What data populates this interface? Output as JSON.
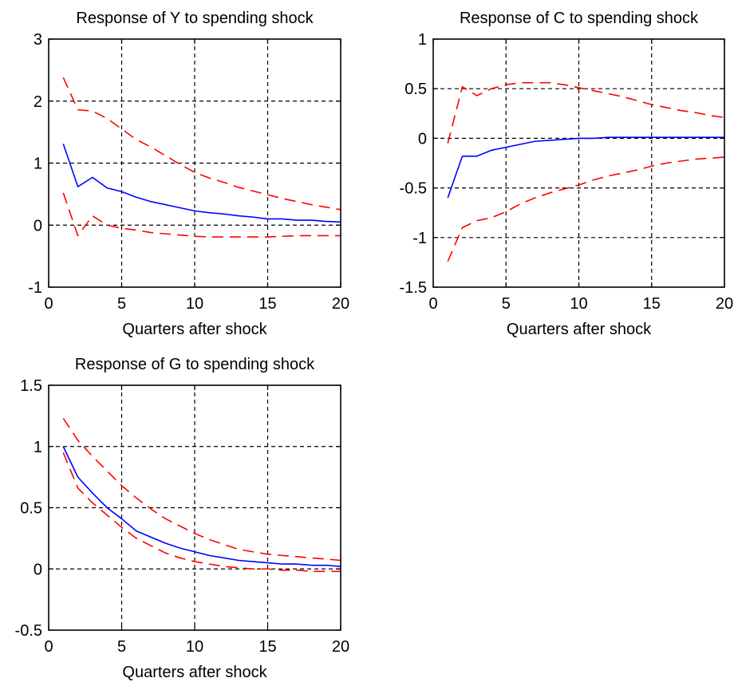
{
  "chart_data": [
    {
      "type": "line",
      "title": "Response of Y to spending shock",
      "xlabel": "Quarters after shock",
      "ylabel": "",
      "xlim": [
        0,
        20
      ],
      "ylim": [
        -1,
        3
      ],
      "xticks": [
        0,
        5,
        10,
        15,
        20
      ],
      "yticks": [
        -1,
        0,
        1,
        2,
        3
      ],
      "xtick_labels": [
        "0",
        "5",
        "10",
        "15",
        "20"
      ],
      "ytick_labels": [
        "-1",
        "0",
        "1",
        "2",
        "3"
      ],
      "grid": true,
      "x": [
        1,
        2,
        3,
        4,
        5,
        6,
        7,
        8,
        9,
        10,
        11,
        12,
        13,
        14,
        15,
        16,
        17,
        18,
        19,
        20
      ],
      "series": [
        {
          "style": "solid",
          "color": "#0000FF",
          "values": [
            1.31,
            0.62,
            0.77,
            0.6,
            0.54,
            0.45,
            0.38,
            0.33,
            0.28,
            0.23,
            0.2,
            0.18,
            0.15,
            0.13,
            0.1,
            0.1,
            0.08,
            0.08,
            0.06,
            0.05
          ]
        },
        {
          "style": "dashed",
          "color": "#FF0000",
          "values": [
            2.38,
            1.86,
            1.84,
            1.72,
            1.55,
            1.38,
            1.26,
            1.12,
            0.98,
            0.85,
            0.76,
            0.69,
            0.61,
            0.55,
            0.49,
            0.43,
            0.38,
            0.33,
            0.29,
            0.25
          ]
        },
        {
          "style": "dashed",
          "color": "#FF0000",
          "values": [
            0.52,
            -0.17,
            0.15,
            0.0,
            -0.05,
            -0.08,
            -0.12,
            -0.14,
            -0.16,
            -0.18,
            -0.19,
            -0.19,
            -0.19,
            -0.19,
            -0.19,
            -0.18,
            -0.17,
            -0.17,
            -0.17,
            -0.17
          ]
        }
      ]
    },
    {
      "type": "line",
      "title": "Response of C to spending shock",
      "xlabel": "Quarters after shock",
      "ylabel": "",
      "xlim": [
        0,
        20
      ],
      "ylim": [
        -1.5,
        1
      ],
      "xticks": [
        0,
        5,
        10,
        15,
        20
      ],
      "yticks": [
        -1.5,
        -1,
        -0.5,
        0,
        0.5,
        1
      ],
      "xtick_labels": [
        "0",
        "5",
        "10",
        "15",
        "20"
      ],
      "ytick_labels": [
        "-1.5",
        "-1",
        "-0.5",
        "0",
        "0.5",
        "1"
      ],
      "grid": true,
      "x": [
        1,
        2,
        3,
        4,
        5,
        6,
        7,
        8,
        9,
        10,
        11,
        12,
        13,
        14,
        15,
        16,
        17,
        18,
        19,
        20
      ],
      "series": [
        {
          "style": "solid",
          "color": "#0000FF",
          "values": [
            -0.6,
            -0.18,
            -0.18,
            -0.12,
            -0.09,
            -0.06,
            -0.03,
            -0.02,
            -0.01,
            0.0,
            0.0,
            0.01,
            0.01,
            0.01,
            0.01,
            0.01,
            0.01,
            0.01,
            0.01,
            0.01
          ]
        },
        {
          "style": "dashed",
          "color": "#FF0000",
          "values": [
            -0.05,
            0.52,
            0.43,
            0.5,
            0.54,
            0.56,
            0.56,
            0.56,
            0.54,
            0.51,
            0.48,
            0.45,
            0.42,
            0.38,
            0.34,
            0.31,
            0.28,
            0.26,
            0.23,
            0.21
          ]
        },
        {
          "style": "dashed",
          "color": "#FF0000",
          "values": [
            -1.24,
            -0.9,
            -0.83,
            -0.8,
            -0.74,
            -0.66,
            -0.6,
            -0.55,
            -0.51,
            -0.47,
            -0.42,
            -0.38,
            -0.35,
            -0.32,
            -0.28,
            -0.25,
            -0.23,
            -0.21,
            -0.2,
            -0.19
          ]
        }
      ]
    },
    {
      "type": "line",
      "title": "Response of G to spending shock",
      "xlabel": "Quarters after shock",
      "ylabel": "",
      "xlim": [
        0,
        20
      ],
      "ylim": [
        -0.5,
        1.5
      ],
      "xticks": [
        0,
        5,
        10,
        15,
        20
      ],
      "yticks": [
        -0.5,
        0,
        0.5,
        1,
        1.5
      ],
      "xtick_labels": [
        "0",
        "5",
        "10",
        "15",
        "20"
      ],
      "ytick_labels": [
        "-0.5",
        "0",
        "0.5",
        "1",
        "1.5"
      ],
      "grid": true,
      "x": [
        1,
        2,
        3,
        4,
        5,
        6,
        7,
        8,
        9,
        10,
        11,
        12,
        13,
        14,
        15,
        16,
        17,
        18,
        19,
        20
      ],
      "series": [
        {
          "style": "solid",
          "color": "#0000FF",
          "values": [
            1.0,
            0.75,
            0.62,
            0.5,
            0.41,
            0.31,
            0.26,
            0.21,
            0.17,
            0.14,
            0.11,
            0.09,
            0.07,
            0.06,
            0.05,
            0.04,
            0.04,
            0.03,
            0.03,
            0.02
          ]
        },
        {
          "style": "dashed",
          "color": "#FF0000",
          "values": [
            1.23,
            1.05,
            0.92,
            0.8,
            0.68,
            0.58,
            0.49,
            0.41,
            0.35,
            0.29,
            0.24,
            0.2,
            0.16,
            0.14,
            0.12,
            0.11,
            0.1,
            0.09,
            0.08,
            0.07
          ]
        },
        {
          "style": "dashed",
          "color": "#FF0000",
          "values": [
            0.95,
            0.66,
            0.54,
            0.44,
            0.34,
            0.25,
            0.19,
            0.13,
            0.09,
            0.06,
            0.04,
            0.02,
            0.01,
            0.0,
            0.0,
            -0.01,
            -0.01,
            -0.02,
            -0.02,
            -0.02
          ]
        }
      ]
    }
  ]
}
